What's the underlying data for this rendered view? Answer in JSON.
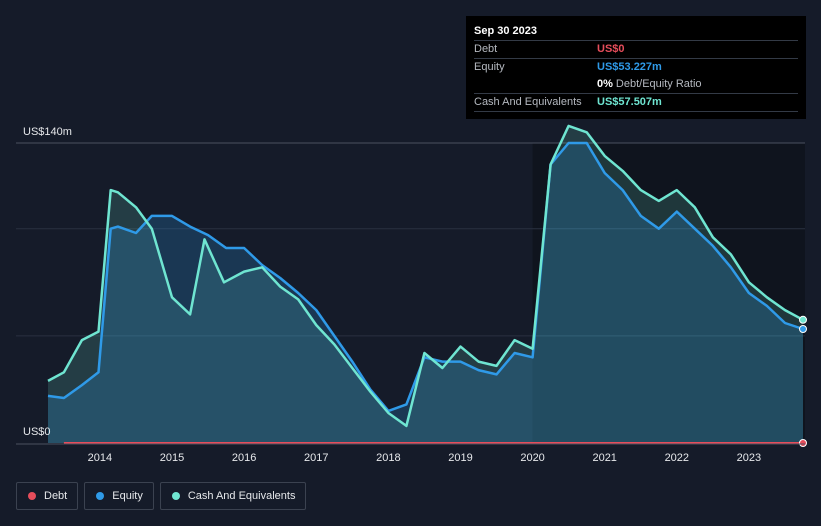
{
  "tooltip": {
    "date": "Sep 30 2023",
    "rows": [
      {
        "label": "Debt",
        "value": "US$0",
        "color": "#e64d5b"
      },
      {
        "label": "Equity",
        "value": "US$53.227m",
        "color": "#2f9ae8"
      },
      {
        "ratio_value": "0%",
        "ratio_label": "Debt/Equity Ratio"
      },
      {
        "label": "Cash And Equivalents",
        "value": "US$57.507m",
        "color": "#6fe5d1"
      }
    ]
  },
  "legend": [
    {
      "label": "Debt",
      "color": "#e64d5b"
    },
    {
      "label": "Equity",
      "color": "#2f9ae8"
    },
    {
      "label": "Cash And Equivalents",
      "color": "#6fe5d1"
    }
  ],
  "chart_data": {
    "type": "area",
    "y_top_label": "US$140m",
    "y_bottom_label": "US$0",
    "ylim": [
      0,
      140
    ],
    "xlim": [
      2013.28,
      2023.75
    ],
    "x_ticks": [
      2014,
      2015,
      2016,
      2017,
      2018,
      2019,
      2020,
      2021,
      2022,
      2023
    ],
    "x_tick_labels": [
      "2014",
      "2015",
      "2016",
      "2017",
      "2018",
      "2019",
      "2020",
      "2021",
      "2022",
      "2023"
    ],
    "series": [
      {
        "name": "Cash And Equivalents",
        "color": "#6fe5d1",
        "points": [
          [
            2013.28,
            29
          ],
          [
            2013.5,
            33
          ],
          [
            2013.75,
            48
          ],
          [
            2013.98,
            52
          ],
          [
            2014.15,
            118
          ],
          [
            2014.25,
            117
          ],
          [
            2014.5,
            110
          ],
          [
            2014.72,
            100
          ],
          [
            2015.0,
            68
          ],
          [
            2015.25,
            60
          ],
          [
            2015.45,
            95
          ],
          [
            2015.72,
            75
          ],
          [
            2016.0,
            80
          ],
          [
            2016.25,
            82
          ],
          [
            2016.5,
            73
          ],
          [
            2016.75,
            67
          ],
          [
            2017.0,
            55
          ],
          [
            2017.25,
            46
          ],
          [
            2017.5,
            35
          ],
          [
            2017.75,
            24
          ],
          [
            2018.0,
            14
          ],
          [
            2018.25,
            8
          ],
          [
            2018.5,
            42
          ],
          [
            2018.75,
            35
          ],
          [
            2019.0,
            45
          ],
          [
            2019.25,
            38
          ],
          [
            2019.5,
            36
          ],
          [
            2019.75,
            48
          ],
          [
            2020.0,
            44
          ],
          [
            2020.25,
            130
          ],
          [
            2020.5,
            148
          ],
          [
            2020.75,
            145
          ],
          [
            2021.0,
            134
          ],
          [
            2021.25,
            127
          ],
          [
            2021.5,
            118
          ],
          [
            2021.75,
            113
          ],
          [
            2022.0,
            118
          ],
          [
            2022.25,
            110
          ],
          [
            2022.5,
            96
          ],
          [
            2022.75,
            88
          ],
          [
            2023.0,
            75
          ],
          [
            2023.25,
            68
          ],
          [
            2023.5,
            62
          ],
          [
            2023.75,
            57.5
          ]
        ]
      },
      {
        "name": "Equity",
        "color": "#2f9ae8",
        "points": [
          [
            2013.28,
            22
          ],
          [
            2013.5,
            21
          ],
          [
            2013.75,
            27
          ],
          [
            2013.98,
            33
          ],
          [
            2014.15,
            100
          ],
          [
            2014.25,
            101
          ],
          [
            2014.5,
            98
          ],
          [
            2014.72,
            106
          ],
          [
            2015.0,
            106
          ],
          [
            2015.25,
            101
          ],
          [
            2015.5,
            97
          ],
          [
            2015.75,
            91
          ],
          [
            2016.0,
            91
          ],
          [
            2016.25,
            83
          ],
          [
            2016.5,
            77
          ],
          [
            2016.75,
            70
          ],
          [
            2017.0,
            62
          ],
          [
            2017.25,
            50
          ],
          [
            2017.5,
            38
          ],
          [
            2017.75,
            25
          ],
          [
            2018.0,
            15
          ],
          [
            2018.25,
            18
          ],
          [
            2018.5,
            40
          ],
          [
            2018.75,
            38
          ],
          [
            2019.0,
            38
          ],
          [
            2019.25,
            34
          ],
          [
            2019.5,
            32
          ],
          [
            2019.75,
            42
          ],
          [
            2020.0,
            40
          ],
          [
            2020.25,
            130
          ],
          [
            2020.5,
            140
          ],
          [
            2020.75,
            140
          ],
          [
            2021.0,
            126
          ],
          [
            2021.25,
            118
          ],
          [
            2021.5,
            106
          ],
          [
            2021.75,
            100
          ],
          [
            2022.0,
            108
          ],
          [
            2022.25,
            100
          ],
          [
            2022.5,
            92
          ],
          [
            2022.75,
            82
          ],
          [
            2023.0,
            70
          ],
          [
            2023.25,
            64
          ],
          [
            2023.5,
            56
          ],
          [
            2023.75,
            53.2
          ]
        ]
      },
      {
        "name": "Debt",
        "color": "#e64d5b",
        "points": [
          [
            2013.5,
            0
          ],
          [
            2023.75,
            0
          ]
        ]
      }
    ]
  }
}
